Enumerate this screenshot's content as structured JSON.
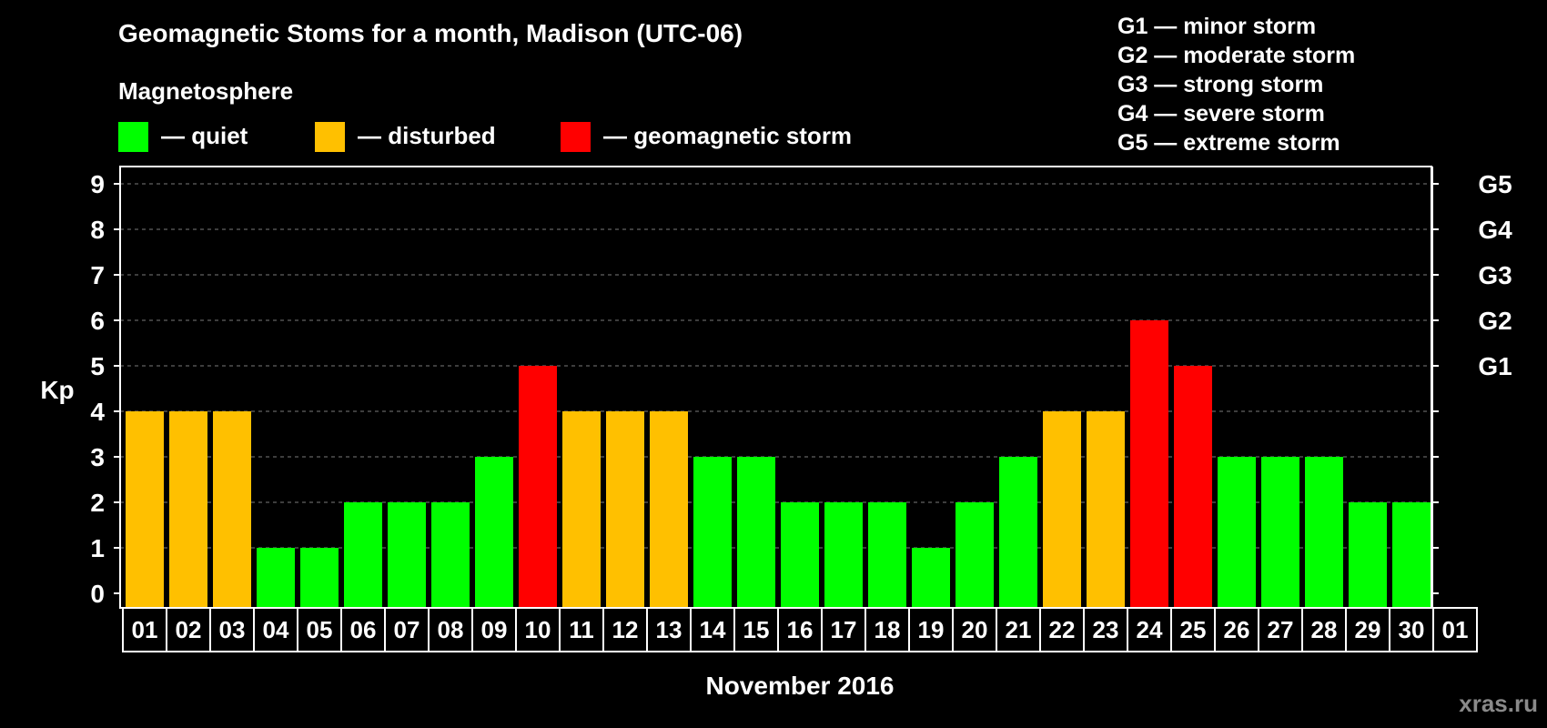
{
  "header": {
    "title": "Geomagnetic Stoms for a month, Madison (UTC-06)",
    "legend_heading": "Magnetosphere",
    "legend_items": [
      {
        "label": "— quiet",
        "color": "#00ff00"
      },
      {
        "label": "— disturbed",
        "color": "#ffc000"
      },
      {
        "label": "— geomagnetic storm",
        "color": "#ff0000"
      }
    ]
  },
  "storm_scale": [
    "G1 — minor storm",
    "G2 — moderate storm",
    "G3 — strong storm",
    "G4 — severe storm",
    "G5 — extreme storm"
  ],
  "watermark": "xras.ru",
  "chart_data": {
    "type": "bar",
    "title": "Geomagnetic Stoms for a month, Madison (UTC-06)",
    "xlabel": "November 2016",
    "ylabel": "Kp",
    "ylim": [
      0,
      9
    ],
    "yticks": [
      "0",
      "1",
      "2",
      "3",
      "4",
      "5",
      "6",
      "7",
      "8",
      "9"
    ],
    "right_axis_labels": [
      {
        "kp": 5,
        "label": "G1"
      },
      {
        "kp": 6,
        "label": "G2"
      },
      {
        "kp": 7,
        "label": "G3"
      },
      {
        "kp": 8,
        "label": "G4"
      },
      {
        "kp": 9,
        "label": "G5"
      }
    ],
    "grid": true,
    "categories": [
      "01",
      "02",
      "03",
      "04",
      "05",
      "06",
      "07",
      "08",
      "09",
      "10",
      "11",
      "12",
      "13",
      "14",
      "15",
      "16",
      "17",
      "18",
      "19",
      "20",
      "21",
      "22",
      "23",
      "24",
      "25",
      "26",
      "27",
      "28",
      "29",
      "30",
      "01"
    ],
    "values": [
      4,
      4,
      4,
      1,
      1,
      2,
      2,
      2,
      3,
      5,
      4,
      4,
      4,
      3,
      3,
      2,
      2,
      2,
      1,
      2,
      3,
      4,
      4,
      6,
      5,
      3,
      3,
      3,
      2,
      2,
      null
    ],
    "colors": {
      "quiet": "#00ff00",
      "disturbed": "#ffc000",
      "storm": "#ff0000"
    }
  }
}
